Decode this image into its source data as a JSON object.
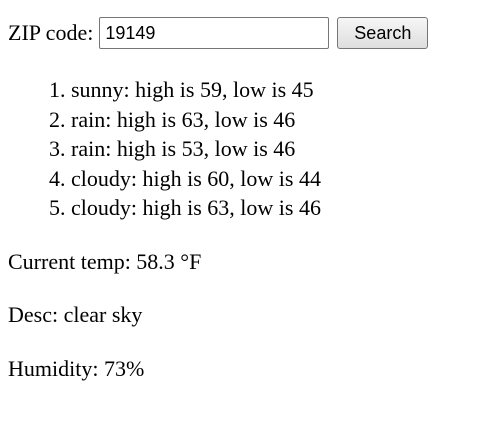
{
  "search": {
    "label": "ZIP code:",
    "zip_value": "19149",
    "button_label": "Search"
  },
  "forecast": [
    "sunny: high is 59, low is 45",
    "rain: high is 63, low is 46",
    "rain: high is 53, low is 46",
    "cloudy: high is 60, low is 44",
    "cloudy: high is 63, low is 46"
  ],
  "current": {
    "temp_text": "Current temp: 58.3 °F",
    "desc_text": "Desc: clear sky",
    "humidity_text": "Humidity: 73%"
  }
}
